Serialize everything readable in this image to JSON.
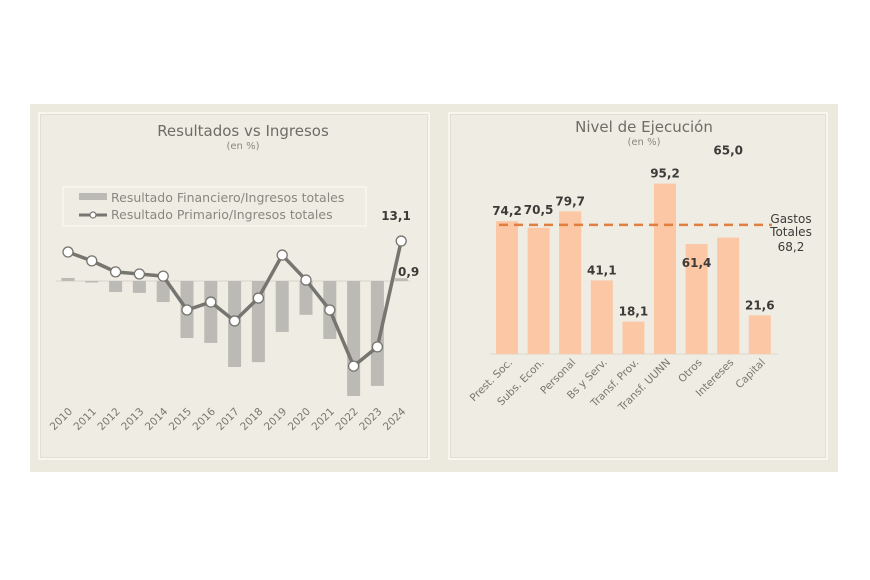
{
  "colors": {
    "frame_bg": "#ece9df",
    "panel_bg": "#efece3",
    "bar_gray": "#bcbab5",
    "line_gray": "#77756f",
    "bar_orange": "#fbc7a5",
    "dash_orange": "#e07f3f",
    "label_dark": "#3d3b38"
  },
  "chart_data": [
    {
      "type": "bar+line",
      "title": "Resultados vs Ingresos",
      "subtitle": "(en %)",
      "xlabel": "",
      "ylabel": "",
      "categories": [
        "2010",
        "2011",
        "2012",
        "2013",
        "2014",
        "2015",
        "2016",
        "2017",
        "2018",
        "2019",
        "2020",
        "2021",
        "2022",
        "2023",
        "2024"
      ],
      "series": [
        {
          "name": "Resultado Financiero/Ingresos totales",
          "kind": "bar",
          "values": [
            1.0,
            -0.5,
            -3.6,
            -3.9,
            -6.9,
            -18.7,
            -20.3,
            -28.2,
            -26.6,
            -16.7,
            -11.1,
            -19.0,
            -37.7,
            -34.4,
            0.9
          ]
        },
        {
          "name": "Resultado Primario/Ingresos totales",
          "kind": "line",
          "values": [
            9.5,
            6.6,
            3.0,
            2.3,
            1.6,
            -9.5,
            -6.9,
            -13.1,
            -5.6,
            8.5,
            0.3,
            -9.5,
            -27.9,
            -21.6,
            13.1
          ]
        }
      ],
      "data_labels": [
        {
          "series": "Resultado Primario/Ingresos totales",
          "category": "2024",
          "text": "13,1"
        },
        {
          "series": "Resultado Financiero/Ingresos totales",
          "category": "2024",
          "text": "0,9"
        }
      ],
      "ylim": [
        -40,
        16
      ],
      "grid": false,
      "legend_position": "top-left",
      "x_tick_rotation": -45
    },
    {
      "type": "bar",
      "title": "Nivel de Ejecución",
      "subtitle": "(en %)",
      "xlabel": "",
      "ylabel": "",
      "categories": [
        "Prest. Soc.",
        "Subs. Econ.",
        "Personal",
        "Bs y Serv.",
        "Transf. Prov.",
        "Transf. UUNN",
        "Otros",
        "Intereses",
        "Capital"
      ],
      "values": [
        74.2,
        70.5,
        79.7,
        41.1,
        18.1,
        95.2,
        61.4,
        65.0,
        21.6
      ],
      "data_labels": [
        "74,2",
        "70,5",
        "79,7",
        "41,1",
        "18,1",
        "95,2",
        "61,4",
        "65,0",
        "21,6"
      ],
      "reference_line": {
        "label_line1": "Gastos",
        "label_line2": "Totales",
        "value": 68.2,
        "value_label": "68,2",
        "style": "dashed"
      },
      "ylim": [
        0,
        100
      ],
      "grid": false,
      "legend_position": "none",
      "x_tick_rotation": -45
    }
  ]
}
